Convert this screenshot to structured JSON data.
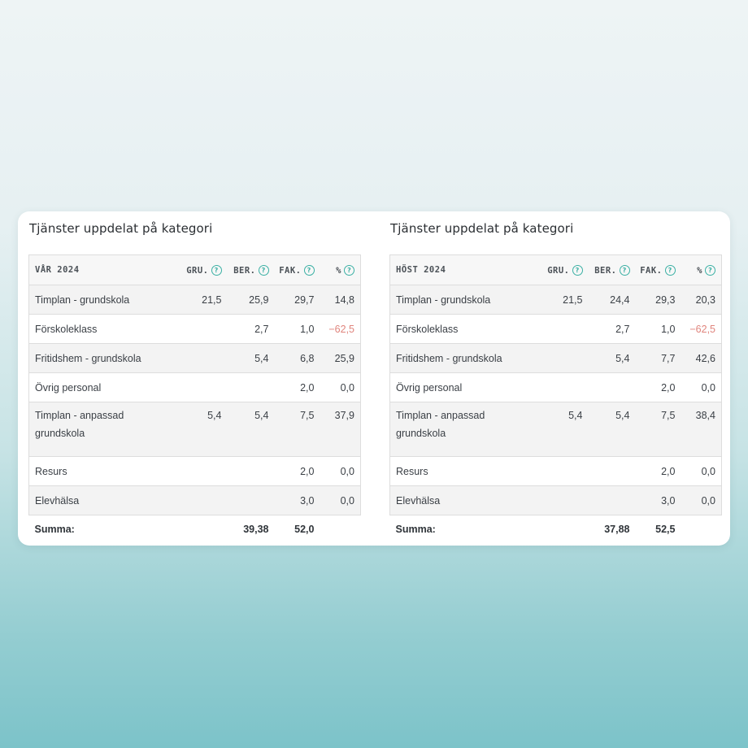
{
  "tables": [
    {
      "title": "Tjänster uppdelat på kategori",
      "period": "VÅR 2024",
      "columns": [
        "GRU.",
        "BER.",
        "FAK.",
        "%"
      ],
      "rows": [
        {
          "name": "Timplan - grundskola",
          "gru": "21,5",
          "ber": "25,9",
          "fak": "29,7",
          "pct": "14,8",
          "negative": false
        },
        {
          "name": "Förskoleklass",
          "gru": "",
          "ber": "2,7",
          "fak": "1,0",
          "pct": "−62,5",
          "negative": true
        },
        {
          "name": "Fritidshem - grundskola",
          "gru": "",
          "ber": "5,4",
          "fak": "6,8",
          "pct": "25,9",
          "negative": false
        },
        {
          "name": "Övrig personal",
          "gru": "",
          "ber": "",
          "fak": "2,0",
          "pct": "0,0",
          "negative": false
        },
        {
          "name": "Timplan - anpassad grundskola",
          "gru": "5,4",
          "ber": "5,4",
          "fak": "7,5",
          "pct": "37,9",
          "negative": false
        },
        {
          "name": "Resurs",
          "gru": "",
          "ber": "",
          "fak": "2,0",
          "pct": "0,0",
          "negative": false
        },
        {
          "name": "Elevhälsa",
          "gru": "",
          "ber": "",
          "fak": "3,0",
          "pct": "0,0",
          "negative": false
        }
      ],
      "summary": {
        "label": "Summa:",
        "gru": "",
        "ber": "39,38",
        "fak": "52,0",
        "pct": ""
      }
    },
    {
      "title": "Tjänster uppdelat på kategori",
      "period": "HÖST 2024",
      "columns": [
        "GRU.",
        "BER.",
        "FAK.",
        "%"
      ],
      "rows": [
        {
          "name": "Timplan - grundskola",
          "gru": "21,5",
          "ber": "24,4",
          "fak": "29,3",
          "pct": "20,3",
          "negative": false
        },
        {
          "name": "Förskoleklass",
          "gru": "",
          "ber": "2,7",
          "fak": "1,0",
          "pct": "−62,5",
          "negative": true
        },
        {
          "name": "Fritidshem - grundskola",
          "gru": "",
          "ber": "5,4",
          "fak": "7,7",
          "pct": "42,6",
          "negative": false
        },
        {
          "name": "Övrig personal",
          "gru": "",
          "ber": "",
          "fak": "2,0",
          "pct": "0,0",
          "negative": false
        },
        {
          "name": "Timplan - anpassad grundskola",
          "gru": "5,4",
          "ber": "5,4",
          "fak": "7,5",
          "pct": "38,4",
          "negative": false
        },
        {
          "name": "Resurs",
          "gru": "",
          "ber": "",
          "fak": "2,0",
          "pct": "0,0",
          "negative": false
        },
        {
          "name": "Elevhälsa",
          "gru": "",
          "ber": "",
          "fak": "3,0",
          "pct": "0,0",
          "negative": false
        }
      ],
      "summary": {
        "label": "Summa:",
        "gru": "",
        "ber": "37,88",
        "fak": "52,5",
        "pct": ""
      }
    }
  ],
  "icons": {
    "help": "help-circle-icon",
    "help_glyph": "?"
  },
  "colors": {
    "accent": "#3bb0a4",
    "negative": "#e0847d"
  }
}
